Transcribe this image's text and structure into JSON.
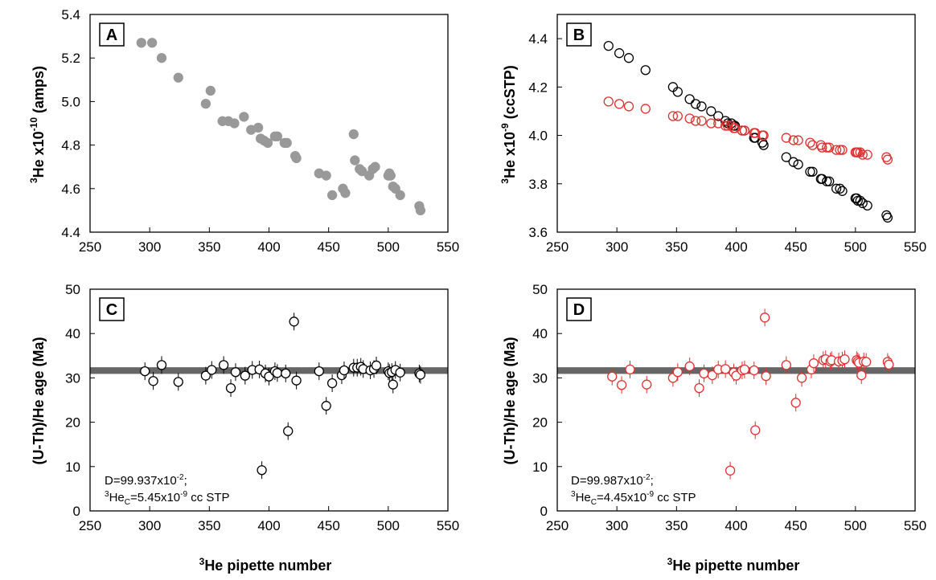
{
  "x_axis_label_left": "pipette number",
  "x_axis_label_right": "pipette number",
  "x_axis_label_prefix": "He",
  "x_axis_label_sup": "3",
  "chart_data": [
    {
      "id": "A",
      "type": "scatter",
      "panel_label": "A",
      "ylabel_pre": "He x10",
      "ylabel_presup": "3",
      "ylabel_exp": "-10",
      "ylabel_post": " (amps)",
      "xlim": [
        250,
        550
      ],
      "ylim": [
        4.4,
        5.4
      ],
      "xticks": [
        250,
        300,
        350,
        400,
        450,
        500,
        550
      ],
      "yticks": [
        "4.4",
        "4.6",
        "4.8",
        "5.0",
        "5.2",
        "5.4"
      ],
      "series": [
        {
          "color": "#999999",
          "fill": "#999999",
          "x": [
            293,
            302,
            310,
            324,
            347,
            351,
            361,
            366,
            371,
            379,
            385,
            391,
            393,
            396,
            399,
            405,
            407,
            413,
            415,
            422,
            423,
            442,
            448,
            453,
            462,
            464,
            471,
            472,
            476,
            478,
            484,
            487,
            489,
            500,
            501,
            502,
            504,
            506,
            510,
            526,
            527
          ],
          "y": [
            5.27,
            5.27,
            5.2,
            5.11,
            4.99,
            5.05,
            4.91,
            4.91,
            4.9,
            4.93,
            4.87,
            4.88,
            4.83,
            4.82,
            4.81,
            4.84,
            4.84,
            4.81,
            4.81,
            4.75,
            4.74,
            4.67,
            4.66,
            4.57,
            4.6,
            4.58,
            4.85,
            4.73,
            4.69,
            4.68,
            4.66,
            4.69,
            4.7,
            4.66,
            4.67,
            4.66,
            4.61,
            4.6,
            4.57,
            4.52,
            4.5
          ]
        }
      ]
    },
    {
      "id": "B",
      "type": "scatter",
      "panel_label": "B",
      "ylabel_pre": "He x10",
      "ylabel_presup": "3",
      "ylabel_exp": "-9",
      "ylabel_post": " (ccSTP)",
      "xlim": [
        250,
        550
      ],
      "ylim": [
        3.6,
        4.5
      ],
      "xticks": [
        250,
        300,
        350,
        400,
        450,
        500,
        550
      ],
      "yticks": [
        "3.6",
        "3.8",
        "4.0",
        "4.2",
        "4.4"
      ],
      "series": [
        {
          "color": "#000000",
          "fill": "none",
          "x": [
            293,
            302,
            310,
            324,
            347,
            351,
            361,
            366,
            371,
            379,
            385,
            391,
            393,
            396,
            398,
            399,
            405,
            407,
            415,
            416,
            422,
            423,
            442,
            448,
            452,
            462,
            464,
            471,
            472,
            476,
            478,
            484,
            487,
            489,
            500,
            501,
            502,
            504,
            506,
            510,
            526,
            527
          ],
          "y": [
            4.37,
            4.34,
            4.32,
            4.27,
            4.2,
            4.18,
            4.15,
            4.13,
            4.12,
            4.1,
            4.08,
            4.06,
            4.05,
            4.05,
            4.04,
            4.04,
            4.02,
            4.02,
            3.99,
            3.99,
            3.97,
            3.96,
            3.91,
            3.89,
            3.88,
            3.85,
            3.85,
            3.82,
            3.82,
            3.81,
            3.81,
            3.78,
            3.78,
            3.77,
            3.74,
            3.74,
            3.73,
            3.73,
            3.72,
            3.71,
            3.67,
            3.66
          ]
        },
        {
          "color": "#e03030",
          "fill": "none",
          "x": [
            293,
            302,
            310,
            324,
            347,
            351,
            361,
            366,
            371,
            379,
            385,
            391,
            393,
            396,
            398,
            399,
            405,
            407,
            415,
            416,
            422,
            423,
            442,
            448,
            452,
            462,
            464,
            471,
            472,
            476,
            478,
            484,
            487,
            489,
            500,
            501,
            502,
            504,
            506,
            510,
            526,
            527
          ],
          "y": [
            4.14,
            4.13,
            4.12,
            4.11,
            4.08,
            4.08,
            4.07,
            4.06,
            4.06,
            4.05,
            4.05,
            4.04,
            4.04,
            4.04,
            4.03,
            4.03,
            4.02,
            4.02,
            4.01,
            4.01,
            4.0,
            4.0,
            3.99,
            3.98,
            3.98,
            3.97,
            3.96,
            3.96,
            3.95,
            3.95,
            3.95,
            3.94,
            3.94,
            3.94,
            3.93,
            3.93,
            3.93,
            3.93,
            3.92,
            3.92,
            3.91,
            3.9
          ]
        }
      ]
    },
    {
      "id": "C",
      "type": "scatter",
      "panel_label": "C",
      "ylabel": "(U-Th)/He age (Ma)",
      "xlim": [
        250,
        550
      ],
      "ylim": [
        0,
        50
      ],
      "xticks": [
        250,
        300,
        350,
        400,
        450,
        500,
        550
      ],
      "yticks": [
        "0",
        "10",
        "20",
        "30",
        "40",
        "50"
      ],
      "band": {
        "y0": 30.9,
        "y1": 32.4,
        "color": "#666666"
      },
      "annotation_line1_pre": "D=99.937x10",
      "annotation_line1_sup": "-2",
      "annotation_line1_post": ";",
      "annotation_line2_presup": "3",
      "annotation_line2_pre": "He",
      "annotation_line2_sub": "C",
      "annotation_line2_mid": "=5.45x10",
      "annotation_line2_sup": "-9",
      "annotation_line2_post": " cc STP",
      "series": [
        {
          "color": "#000000",
          "fill": "#ffffff",
          "err": 1.2,
          "x": [
            296,
            303,
            310,
            324,
            347,
            352,
            362,
            368,
            372,
            380,
            386,
            392,
            394,
            397,
            400,
            405,
            407,
            414,
            416,
            421,
            423,
            442,
            448,
            453,
            461,
            463,
            471,
            474,
            477,
            479,
            485,
            488,
            490,
            500,
            501,
            503,
            504,
            506,
            510,
            526,
            527
          ],
          "y": [
            31.5,
            29.3,
            32.9,
            29.1,
            30.5,
            31.8,
            32.9,
            27.7,
            31.3,
            30.5,
            31.8,
            31.9,
            9.2,
            31.0,
            30.3,
            31.5,
            31.1,
            31.0,
            18.0,
            42.7,
            29.4,
            31.5,
            23.7,
            28.8,
            30.6,
            31.7,
            32.3,
            32.3,
            32.5,
            32.0,
            31.7,
            32.0,
            32.8,
            31.5,
            31.1,
            31.3,
            28.5,
            31.8,
            31.2,
            31.0,
            30.7
          ]
        }
      ]
    },
    {
      "id": "D",
      "type": "scatter",
      "panel_label": "D",
      "ylabel": "(U-Th)/He age (Ma)",
      "xlim": [
        250,
        550
      ],
      "ylim": [
        0,
        50
      ],
      "xticks": [
        250,
        300,
        350,
        400,
        450,
        500,
        550
      ],
      "yticks": [
        "0",
        "10",
        "20",
        "30",
        "40",
        "50"
      ],
      "band": {
        "y0": 30.9,
        "y1": 32.4,
        "color": "#666666"
      },
      "annotation_line1_pre": "D=99.987x10",
      "annotation_line1_sup": "-2",
      "annotation_line1_post": ";",
      "annotation_line2_presup": "3",
      "annotation_line2_pre": "He",
      "annotation_line2_sub": "C",
      "annotation_line2_mid": "=4.45x10",
      "annotation_line2_sup": "-9",
      "annotation_line2_post": " cc STP",
      "series": [
        {
          "color": "#e03030",
          "fill": "#ffffff",
          "err": 1.2,
          "x": [
            296,
            304,
            311,
            325,
            347,
            351,
            361,
            369,
            373,
            380,
            385,
            391,
            395,
            398,
            400,
            405,
            407,
            415,
            416,
            424,
            425,
            442,
            450,
            455,
            463,
            465,
            473,
            475,
            479,
            480,
            486,
            489,
            491,
            501,
            502,
            503,
            505,
            507,
            509,
            527,
            528
          ],
          "y": [
            30.3,
            28.4,
            31.9,
            28.5,
            30.0,
            31.3,
            32.6,
            27.7,
            31.0,
            30.6,
            31.9,
            32.0,
            9.1,
            31.2,
            30.5,
            31.7,
            31.9,
            31.7,
            18.2,
            43.6,
            30.4,
            32.9,
            24.4,
            30.0,
            31.9,
            33.3,
            34.0,
            34.2,
            33.7,
            34.0,
            33.7,
            33.9,
            34.2,
            34.0,
            33.7,
            33.4,
            30.6,
            33.7,
            33.6,
            33.6,
            33.0
          ]
        }
      ]
    }
  ]
}
